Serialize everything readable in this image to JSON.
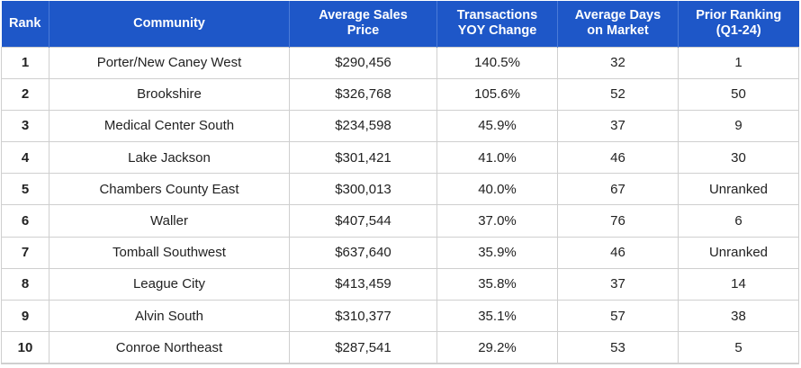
{
  "table": {
    "headers": {
      "rank": "Rank",
      "community": "Community",
      "price_line1": "Average Sales",
      "price_line2": "Price",
      "yoy_line1": "Transactions",
      "yoy_line2": "YOY Change",
      "days_line1": "Average Days",
      "days_line2": "on Market",
      "prior_line1": "Prior Ranking",
      "prior_line2": "(Q1-24)"
    },
    "rows": [
      {
        "rank": "1",
        "community": "Porter/New Caney West",
        "price": "$290,456",
        "yoy": "140.5%",
        "days": "32",
        "prior": "1"
      },
      {
        "rank": "2",
        "community": "Brookshire",
        "price": "$326,768",
        "yoy": "105.6%",
        "days": "52",
        "prior": "50"
      },
      {
        "rank": "3",
        "community": "Medical Center South",
        "price": "$234,598",
        "yoy": "45.9%",
        "days": "37",
        "prior": "9"
      },
      {
        "rank": "4",
        "community": "Lake Jackson",
        "price": "$301,421",
        "yoy": "41.0%",
        "days": "46",
        "prior": "30"
      },
      {
        "rank": "5",
        "community": "Chambers County East",
        "price": "$300,013",
        "yoy": "40.0%",
        "days": "67",
        "prior": "Unranked"
      },
      {
        "rank": "6",
        "community": "Waller",
        "price": "$407,544",
        "yoy": "37.0%",
        "days": "76",
        "prior": "6"
      },
      {
        "rank": "7",
        "community": "Tomball Southwest",
        "price": "$637,640",
        "yoy": "35.9%",
        "days": "46",
        "prior": "Unranked"
      },
      {
        "rank": "8",
        "community": "League City",
        "price": "$413,459",
        "yoy": "35.8%",
        "days": "37",
        "prior": "14"
      },
      {
        "rank": "9",
        "community": "Alvin South",
        "price": "$310,377",
        "yoy": "35.1%",
        "days": "57",
        "prior": "38"
      },
      {
        "rank": "10",
        "community": "Conroe Northeast",
        "price": "$287,541",
        "yoy": "29.2%",
        "days": "53",
        "prior": "5"
      }
    ]
  },
  "colors": {
    "header_bg": "#1e57c8",
    "header_text": "#ffffff",
    "grid": "#cfcfcf"
  }
}
